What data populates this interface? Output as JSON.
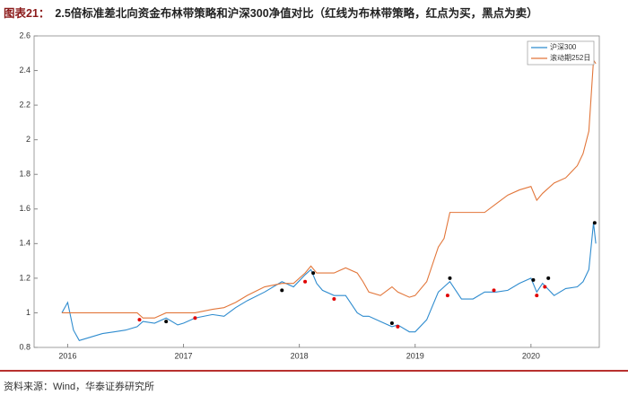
{
  "figure_label": "图表21：",
  "source": "资料来源：Wind，华泰证券研究所",
  "chart_data": {
    "type": "line",
    "title": "2.5倍标准差北向资金布林带策略和沪深300净值对比（红线为布林带策略，红点为买，黑点为卖）",
    "x": [
      2015.95,
      2016.0,
      2016.05,
      2016.1,
      2016.2,
      2016.3,
      2016.4,
      2016.5,
      2016.6,
      2016.65,
      2016.75,
      2016.85,
      2016.95,
      2017.0,
      2017.1,
      2017.25,
      2017.35,
      2017.45,
      2017.55,
      2017.7,
      2017.85,
      2017.95,
      2018.05,
      2018.1,
      2018.15,
      2018.2,
      2018.3,
      2018.4,
      2018.5,
      2018.55,
      2018.6,
      2018.7,
      2018.8,
      2018.85,
      2018.95,
      2019.0,
      2019.1,
      2019.2,
      2019.25,
      2019.3,
      2019.4,
      2019.5,
      2019.6,
      2019.7,
      2019.8,
      2019.9,
      2020.0,
      2020.05,
      2020.1,
      2020.2,
      2020.3,
      2020.4,
      2020.45,
      2020.5,
      2020.54,
      2020.56
    ],
    "series": [
      {
        "name": "沪深300",
        "color": "#2f8ccf",
        "values": [
          1.0,
          1.06,
          0.9,
          0.84,
          0.86,
          0.88,
          0.89,
          0.9,
          0.92,
          0.95,
          0.94,
          0.97,
          0.93,
          0.94,
          0.97,
          0.99,
          0.98,
          1.03,
          1.07,
          1.12,
          1.18,
          1.15,
          1.22,
          1.25,
          1.17,
          1.13,
          1.1,
          1.1,
          1.0,
          0.98,
          0.98,
          0.95,
          0.92,
          0.93,
          0.89,
          0.89,
          0.96,
          1.12,
          1.15,
          1.18,
          1.08,
          1.08,
          1.12,
          1.12,
          1.13,
          1.17,
          1.2,
          1.12,
          1.17,
          1.1,
          1.14,
          1.15,
          1.18,
          1.25,
          1.52,
          1.4
        ]
      },
      {
        "name": "滚动期252日",
        "color": "#e2763a",
        "values": [
          1.0,
          1.0,
          1.0,
          1.0,
          1.0,
          1.0,
          1.0,
          1.0,
          1.0,
          0.97,
          0.97,
          1.0,
          1.0,
          1.0,
          1.0,
          1.02,
          1.03,
          1.06,
          1.1,
          1.15,
          1.17,
          1.17,
          1.23,
          1.27,
          1.23,
          1.23,
          1.23,
          1.26,
          1.23,
          1.18,
          1.12,
          1.1,
          1.15,
          1.12,
          1.09,
          1.1,
          1.18,
          1.38,
          1.43,
          1.58,
          1.58,
          1.58,
          1.58,
          1.63,
          1.68,
          1.71,
          1.73,
          1.65,
          1.69,
          1.75,
          1.78,
          1.85,
          1.92,
          2.05,
          2.46,
          2.44
        ]
      }
    ],
    "markers": [
      {
        "color": "#e00000",
        "x": [
          2016.62,
          2017.1,
          2018.05,
          2018.3,
          2018.85,
          2019.28,
          2019.68,
          2020.05,
          2020.12
        ],
        "y": [
          0.96,
          0.97,
          1.18,
          1.08,
          0.92,
          1.1,
          1.13,
          1.1,
          1.15
        ]
      },
      {
        "color": "#000000",
        "x": [
          2016.85,
          2017.85,
          2018.12,
          2018.8,
          2019.3,
          2020.02,
          2020.15,
          2020.55
        ],
        "y": [
          0.95,
          1.13,
          1.23,
          0.94,
          1.2,
          1.19,
          1.2,
          1.52
        ]
      }
    ],
    "xlim": [
      2015.71,
      2020.59
    ],
    "xticks": [
      2016,
      2017,
      2018,
      2019,
      2020
    ],
    "ylim": [
      0.8,
      2.6
    ],
    "yticks": [
      0.8,
      1.0,
      1.2,
      1.4,
      1.6,
      1.8,
      2.0,
      2.2,
      2.4,
      2.6
    ],
    "legend": "upper right"
  }
}
